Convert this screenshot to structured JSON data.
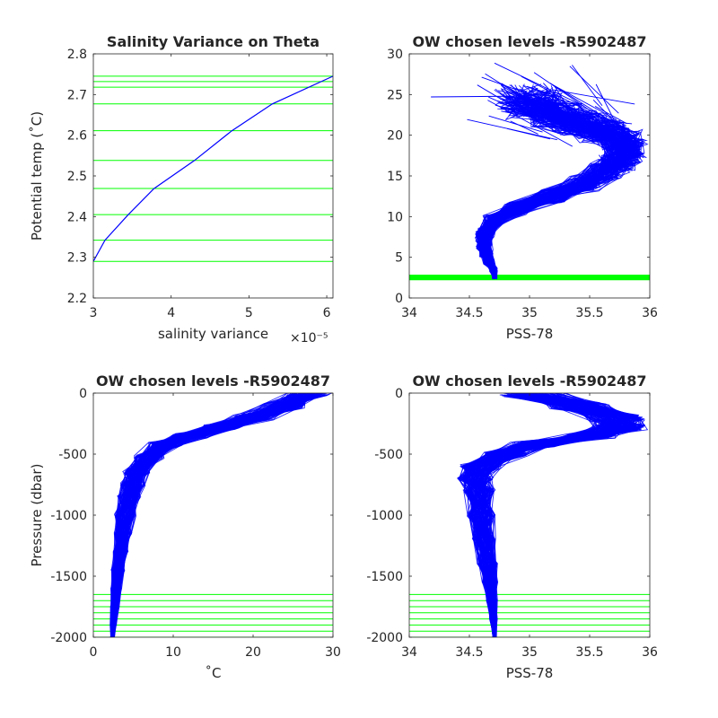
{
  "colors": {
    "profile": "#0000ff",
    "levels": "#00ff00",
    "axis": "#262626"
  },
  "panels": [
    {
      "id": "variance",
      "title": "Salinity Variance on Theta",
      "xlabel": "salinity variance",
      "xexponent": "×10⁻⁵",
      "ylabel": "Potential temp (˚C)",
      "xlim": [
        3,
        6.08
      ],
      "ylim": [
        2.2,
        2.8
      ],
      "xticks": [
        3,
        4,
        5,
        6
      ],
      "yticks": [
        2.2,
        2.3,
        2.4,
        2.5,
        2.6,
        2.7,
        2.8
      ],
      "xticklabels": [
        "3",
        "4",
        "5",
        "6"
      ],
      "yticklabels": [
        "2.2",
        "2.3",
        "2.4",
        "2.5",
        "2.6",
        "2.7",
        "2.8"
      ]
    },
    {
      "id": "theta-salinity",
      "title": "OW chosen levels -R5902487",
      "xlabel": "PSS-78",
      "ylabel": "",
      "xlim": [
        34,
        36
      ],
      "ylim": [
        0,
        30
      ],
      "xticks": [
        34,
        34.5,
        35,
        35.5,
        36
      ],
      "yticks": [
        0,
        5,
        10,
        15,
        20,
        25,
        30
      ],
      "xticklabels": [
        "34",
        "34.5",
        "35",
        "35.5",
        "36"
      ],
      "yticklabels": [
        "0",
        "5",
        "10",
        "15",
        "20",
        "25",
        "30"
      ]
    },
    {
      "id": "temp-pressure",
      "title": "OW chosen levels -R5902487",
      "xlabel": "˚C",
      "ylabel": "Pressure (dbar)",
      "xlim": [
        0,
        30
      ],
      "ylim": [
        -2000,
        0
      ],
      "xticks": [
        0,
        10,
        20,
        30
      ],
      "yticks": [
        -2000,
        -1500,
        -1000,
        -500,
        0
      ],
      "xticklabels": [
        "0",
        "10",
        "20",
        "30"
      ],
      "yticklabels": [
        "-2000",
        "-1500",
        "-1000",
        "-500",
        "0"
      ]
    },
    {
      "id": "sal-pressure",
      "title": "OW chosen levels -R5902487",
      "xlabel": "PSS-78",
      "ylabel": "",
      "xlim": [
        34,
        36
      ],
      "ylim": [
        -2000,
        0
      ],
      "xticks": [
        34,
        34.5,
        35,
        35.5,
        36
      ],
      "yticks": [
        -2000,
        -1500,
        -1000,
        -500,
        0
      ],
      "xticklabels": [
        "34",
        "34.5",
        "35",
        "35.5",
        "36"
      ],
      "yticklabels": [
        "-2000",
        "-1500",
        "-1000",
        "-500",
        "0"
      ]
    }
  ],
  "chart_data": [
    {
      "type": "line",
      "panel": "variance",
      "title": "Salinity Variance on Theta",
      "xlabel": "salinity variance",
      "ylabel": "Potential temp (˚C)",
      "x_scale_exponent": -5,
      "xlim": [
        3,
        6.08
      ],
      "ylim": [
        2.2,
        2.8
      ],
      "series": [
        {
          "x": [
            3.0,
            3.15,
            3.45,
            3.78,
            4.3,
            4.78,
            5.3,
            6.08
          ],
          "y": [
            2.29,
            2.342,
            2.405,
            2.469,
            2.538,
            2.611,
            2.677,
            2.745
          ]
        }
      ],
      "hlines": [
        2.29,
        2.342,
        2.405,
        2.469,
        2.538,
        2.611,
        2.677,
        2.718,
        2.732,
        2.745
      ]
    },
    {
      "type": "line",
      "panel": "theta-salinity",
      "title": "OW chosen levels -R5902487",
      "xlabel": "PSS-78",
      "xlim": [
        34,
        36
      ],
      "ylim": [
        0,
        30
      ],
      "profile_count": 150,
      "mean_profile": {
        "salinity": [
          34.71,
          34.7,
          34.66,
          34.64,
          34.62,
          34.63,
          34.7,
          34.9,
          35.2,
          35.45,
          35.62,
          35.72,
          35.78,
          35.8,
          35.76,
          35.62,
          35.42,
          35.22,
          35.05,
          34.96
        ],
        "theta": [
          2.5,
          3.5,
          4.5,
          5.5,
          6.5,
          8.0,
          9.5,
          11.0,
          12.5,
          14.0,
          15.5,
          16.5,
          17.5,
          18.5,
          19.5,
          20.5,
          21.5,
          22.5,
          23.5,
          24.5
        ]
      },
      "hlines": [
        2.29,
        2.342,
        2.405,
        2.469,
        2.538,
        2.611,
        2.677,
        2.718,
        2.732,
        2.745
      ]
    },
    {
      "type": "line",
      "panel": "temp-pressure",
      "title": "OW chosen levels -R5902487",
      "xlabel": "˚C",
      "ylabel": "Pressure (dbar)",
      "xlim": [
        0,
        30
      ],
      "ylim": [
        -2000,
        0
      ],
      "profile_count": 150,
      "mean_profile": {
        "temperature": [
          27.0,
          24.0,
          20.0,
          16.0,
          12.0,
          9.0,
          7.0,
          5.5,
          5.0,
          4.5,
          4.0,
          3.7,
          3.4,
          3.1,
          2.9,
          2.7,
          2.5,
          2.4
        ],
        "pressure": [
          0,
          -100,
          -200,
          -280,
          -350,
          -420,
          -520,
          -650,
          -750,
          -850,
          -1000,
          -1150,
          -1300,
          -1450,
          -1600,
          -1750,
          -1900,
          -2000
        ]
      },
      "hlines": [
        -1650,
        -1700,
        -1750,
        -1800,
        -1850,
        -1900,
        -1950,
        -2000
      ]
    },
    {
      "type": "line",
      "panel": "sal-pressure",
      "title": "OW chosen levels -R5902487",
      "xlabel": "PSS-78",
      "xlim": [
        34,
        36
      ],
      "ylim": [
        -2000,
        0
      ],
      "profile_count": 150,
      "mean_profile": {
        "salinity": [
          35.0,
          35.4,
          35.72,
          35.75,
          35.5,
          35.05,
          34.8,
          34.6,
          34.55,
          34.58,
          34.6,
          34.62,
          34.65,
          34.67,
          34.69,
          34.7,
          34.71
        ],
        "pressure": [
          0,
          -100,
          -200,
          -280,
          -350,
          -420,
          -500,
          -600,
          -700,
          -800,
          -1000,
          -1200,
          -1400,
          -1550,
          -1700,
          -1850,
          -2000
        ]
      },
      "hlines": [
        -1650,
        -1700,
        -1750,
        -1800,
        -1850,
        -1900,
        -1950,
        -2000
      ]
    }
  ]
}
